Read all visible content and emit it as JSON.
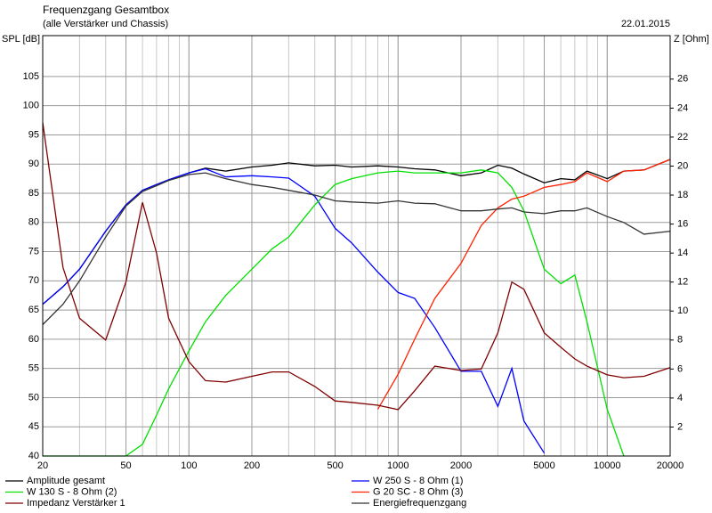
{
  "chart_data": {
    "type": "line",
    "title": "Frequenzgang Gesamtbox",
    "subtitle": "(alle Verstärker und Chassis)",
    "date": "22.01.2015",
    "ylabel": "SPL [dB]",
    "y2label": "Z [Ohm]",
    "xscale": "log",
    "minor_grid": true,
    "grid": true,
    "x": [
      20,
      25,
      30,
      40,
      50,
      60,
      70,
      80,
      100,
      120,
      150,
      200,
      250,
      300,
      400,
      500,
      600,
      800,
      1000,
      1200,
      1500,
      2000,
      2500,
      3000,
      3500,
      4000,
      5000,
      6000,
      7000,
      8000,
      10000,
      12000,
      15000,
      20000
    ],
    "xlim": [
      20,
      20000
    ],
    "xticks": [
      20,
      50,
      100,
      200,
      500,
      1000,
      2000,
      5000,
      10000,
      20000
    ],
    "ylim": [
      40,
      112
    ],
    "yticks": [
      40,
      45,
      50,
      55,
      60,
      65,
      70,
      75,
      80,
      85,
      90,
      95,
      100,
      105
    ],
    "y2lim": [
      0,
      29
    ],
    "y2ticks": [
      2,
      4,
      6,
      8,
      10,
      12,
      14,
      16,
      18,
      20,
      22,
      24,
      26
    ],
    "series": [
      {
        "name": "Amplitude gesamt",
        "color": "#000000",
        "values": [
          66,
          69,
          72,
          78.5,
          83,
          85.5,
          86.5,
          87.3,
          88.5,
          89.3,
          88.8,
          89.5,
          89.8,
          90.2,
          89.7,
          89.8,
          89.5,
          89.7,
          89.5,
          89.2,
          89.0,
          88.0,
          88.5,
          89.8,
          89.3,
          88.3,
          86.8,
          87.5,
          87.3,
          88.8,
          87.5,
          88.8,
          89,
          90.8
        ]
      },
      {
        "name": "W 250 S - 8 Ohm  (1)",
        "color": "#0000ff",
        "values": [
          66,
          69,
          72,
          78.5,
          83,
          85.5,
          86.5,
          87.3,
          88.5,
          89.2,
          87.8,
          88,
          87.8,
          87.6,
          84.5,
          79,
          76.5,
          71.5,
          68,
          67,
          62,
          54.5,
          54.5,
          48.5,
          55,
          46,
          40.5,
          null,
          null,
          null,
          null,
          null,
          null,
          null
        ]
      },
      {
        "name": "W 130 S - 8 Ohm (2)",
        "color": "#00e000",
        "values": [
          40,
          40,
          40,
          40,
          40,
          42,
          47,
          51.5,
          58,
          63,
          67.5,
          72,
          75.5,
          77.5,
          83,
          86.5,
          87.5,
          88.5,
          88.8,
          88.5,
          88.5,
          88.5,
          89,
          88.5,
          86,
          82,
          72,
          69.5,
          71,
          63,
          48,
          40,
          null,
          null
        ]
      },
      {
        "name": "G 20 SC - 8 Ohm (3)",
        "color": "#ff2000",
        "values": [
          null,
          null,
          null,
          null,
          null,
          null,
          null,
          null,
          null,
          null,
          null,
          null,
          null,
          null,
          null,
          null,
          null,
          48,
          54,
          60,
          67,
          73,
          79.5,
          82.5,
          84,
          84.5,
          86,
          86.5,
          87,
          88.5,
          87,
          88.8,
          89,
          90.8
        ]
      },
      {
        "name": "Impedanz Verstärker 1",
        "color": "#800000",
        "axis": "y2",
        "values": [
          23,
          13,
          9.5,
          8,
          12,
          17.5,
          14,
          9.5,
          6.5,
          5.2,
          5.1,
          5.5,
          5.8,
          5.8,
          4.8,
          3.8,
          3.7,
          3.5,
          3.2,
          4.5,
          6.2,
          5.9,
          6,
          8.5,
          12,
          11.5,
          8.5,
          7.5,
          6.7,
          6.2,
          5.6,
          5.4,
          5.5,
          6.1
        ]
      },
      {
        "name": "Energiefrequenzgang",
        "color": "#333333",
        "values": [
          62.5,
          66,
          70,
          77.5,
          82.8,
          85.3,
          86.3,
          87.2,
          88.2,
          88.5,
          87.5,
          86.5,
          86,
          85.5,
          84.7,
          83.7,
          83.5,
          83.3,
          83.7,
          83.3,
          83.2,
          82,
          82,
          82.3,
          82.5,
          81.8,
          81.5,
          82,
          82,
          82.5,
          81,
          80,
          78,
          78.5
        ]
      }
    ]
  }
}
